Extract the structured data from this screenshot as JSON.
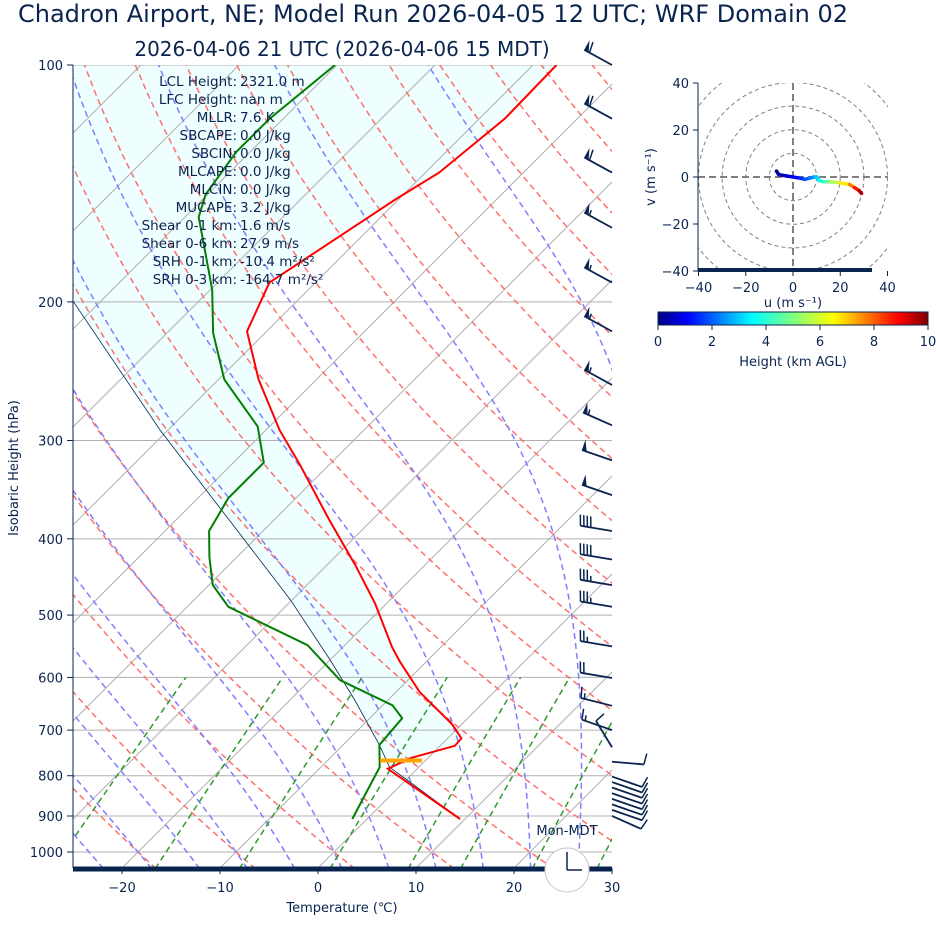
{
  "title": "Chadron Airport, NE; Model Run 2026-04-05 12 UTC; WRF Domain 02",
  "subtitle": "2026-04-06 21 UTC  (2026-04-06 15 MDT)",
  "colors": {
    "temperature": "#ff0000",
    "dewpoint": "#008000",
    "parcel": "#0a2450",
    "cin_fill": "#effefe",
    "isotherm": "#b0b0b0",
    "dry_adiabat": "#ff7070",
    "moist_adiabat": "#7f7fff",
    "mixing_ratio": "#2e9a2e",
    "lcl_marker": "#ffa500",
    "text": "#0a2450"
  },
  "stats": [
    "LCL Height: 2321.0 m",
    "LFC Height: nan m",
    "MLLR: 7.6 K",
    "SBCAPE: 0.0 J/kg",
    "SBCIN: 0.0 J/kg",
    "MLCAPE: 0.0 J/kg",
    "MLCIN: 0.0 J/kg",
    "MUCAPE: 3.2 J/kg",
    "Shear 0-1 km: 1.6 m/s",
    "Shear 0-6 km: 27.9 m/s",
    "SRH 0-1 km: -10.4 m²/s²",
    "SRH 0-3 km: -164.7 m²/s²"
  ],
  "clock_label": "Mon-MDT",
  "clock_time": {
    "hour": 15,
    "minute": 0
  },
  "chart_data": [
    {
      "type": "line",
      "name": "skew-t",
      "xlabel": "Temperature (℃)",
      "ylabel": "Isobaric Height (hPa)",
      "xlim": [
        -25,
        30
      ],
      "ylim": [
        1050,
        100
      ],
      "yscale": "log",
      "grid": true,
      "xticks": [
        "−20",
        "−10",
        "0",
        "10",
        "20",
        "30"
      ],
      "xtick_values": [
        -20,
        -10,
        0,
        10,
        20,
        30
      ],
      "yticks": [
        "100",
        "200",
        "300",
        "400",
        "500",
        "600",
        "700",
        "800",
        "900",
        "1000"
      ],
      "ytick_values": [
        100,
        200,
        300,
        400,
        500,
        600,
        700,
        800,
        900,
        1000
      ],
      "temperature": {
        "pressure": [
          908,
          784,
          760,
          733,
          717,
          688,
          626,
          573,
          549,
          483,
          432,
          379,
          322,
          291,
          251,
          218,
          189,
          148,
          137,
          117,
          100
        ],
        "value": [
          9.5,
          -3.0,
          -1.8,
          1.5,
          1.4,
          -1.0,
          -7.6,
          -12.7,
          -15.0,
          -21.2,
          -27.1,
          -34.3,
          -43.0,
          -48.6,
          -55.9,
          -62.0,
          -64.7,
          -60.3,
          -58.6,
          -57.4,
          -57.6
        ]
      },
      "dewpoint": {
        "pressure": [
          908,
          780,
          731,
          676,
          651,
          605,
          546,
          488,
          458,
          422,
          391,
          355,
          320,
          288,
          251,
          219,
          193,
          156,
          146,
          129,
          117,
          100
        ],
        "value": [
          -1.5,
          -4.0,
          -6.3,
          -6.7,
          -9.0,
          -16.9,
          -23.8,
          -35.8,
          -39.6,
          -42.8,
          -45.5,
          -46.9,
          -46.9,
          -51.2,
          -59.4,
          -65.3,
          -69.8,
          -78.6,
          -80.2,
          -81.4,
          -81.4,
          -80.2
        ]
      },
      "parcel": {
        "pressure": [
          908,
          780,
          731,
          641,
          570,
          478,
          379,
          291,
          199,
          100
        ],
        "value": [
          9.5,
          -3.0,
          -6.3,
          -13.4,
          -20.0,
          -30.2,
          -44.5,
          -60.8,
          -83.0,
          -115.0
        ]
      },
      "lcl": {
        "pressure": 765,
        "temperature": -2.5
      },
      "wind_barbs": {
        "pressure": [
          100,
          117,
          137,
          161,
          189,
          218,
          255,
          287,
          318,
          352,
          391,
          425,
          458,
          488,
          548,
          601,
          652,
          700,
          736,
          768,
          802,
          815,
          828,
          842,
          856,
          870,
          884,
          900
        ],
        "direction_deg": [
          300,
          300,
          300,
          300,
          300,
          300,
          300,
          295,
          290,
          290,
          280,
          280,
          280,
          280,
          280,
          280,
          285,
          290,
          330,
          95,
          110,
          110,
          110,
          110,
          110,
          110,
          110,
          115
        ],
        "speed_kt": [
          60,
          60,
          60,
          55,
          55,
          55,
          55,
          55,
          50,
          50,
          40,
          40,
          35,
          35,
          25,
          20,
          15,
          15,
          10,
          10,
          10,
          10,
          10,
          10,
          10,
          10,
          10,
          10
        ]
      }
    },
    {
      "type": "line",
      "name": "hodograph",
      "xlabel": "u (m s⁻¹)",
      "ylabel": "v (m s⁻¹)",
      "xlim": [
        -40,
        40
      ],
      "ylim": [
        -40,
        40
      ],
      "xticks": [
        "−40",
        "−20",
        "0",
        "20",
        "40"
      ],
      "xtick_values": [
        -40,
        -20,
        0,
        20,
        40
      ],
      "yticks": [
        "40",
        "20",
        "0",
        "−20",
        "−40"
      ],
      "ytick_values": [
        40,
        20,
        0,
        -20,
        -40
      ],
      "ring_values": [
        10,
        20,
        30,
        40,
        50
      ],
      "u": [
        -7,
        -6,
        -3,
        0,
        3,
        5,
        7,
        9,
        10,
        11,
        13,
        16,
        20,
        24,
        26,
        28,
        29
      ],
      "v": [
        2.5,
        1,
        0.5,
        0,
        -0.5,
        -1,
        -0.5,
        0,
        0,
        -1.5,
        -2,
        -2,
        -2.5,
        -3.2,
        -4.5,
        -5.8,
        -7
      ],
      "height_km": [
        0,
        0.3,
        0.7,
        1.1,
        1.5,
        1.9,
        2.3,
        2.7,
        3.1,
        3.5,
        4.2,
        5,
        6,
        7,
        8,
        9,
        10
      ]
    },
    {
      "type": "colorbar",
      "name": "height-colorbar",
      "label": "Height (km AGL)",
      "range": [
        0,
        10
      ],
      "ticks": [
        "0",
        "2",
        "4",
        "6",
        "8",
        "10"
      ],
      "tick_values": [
        0,
        2,
        4,
        6,
        8,
        10
      ],
      "colormap": "jet"
    }
  ]
}
